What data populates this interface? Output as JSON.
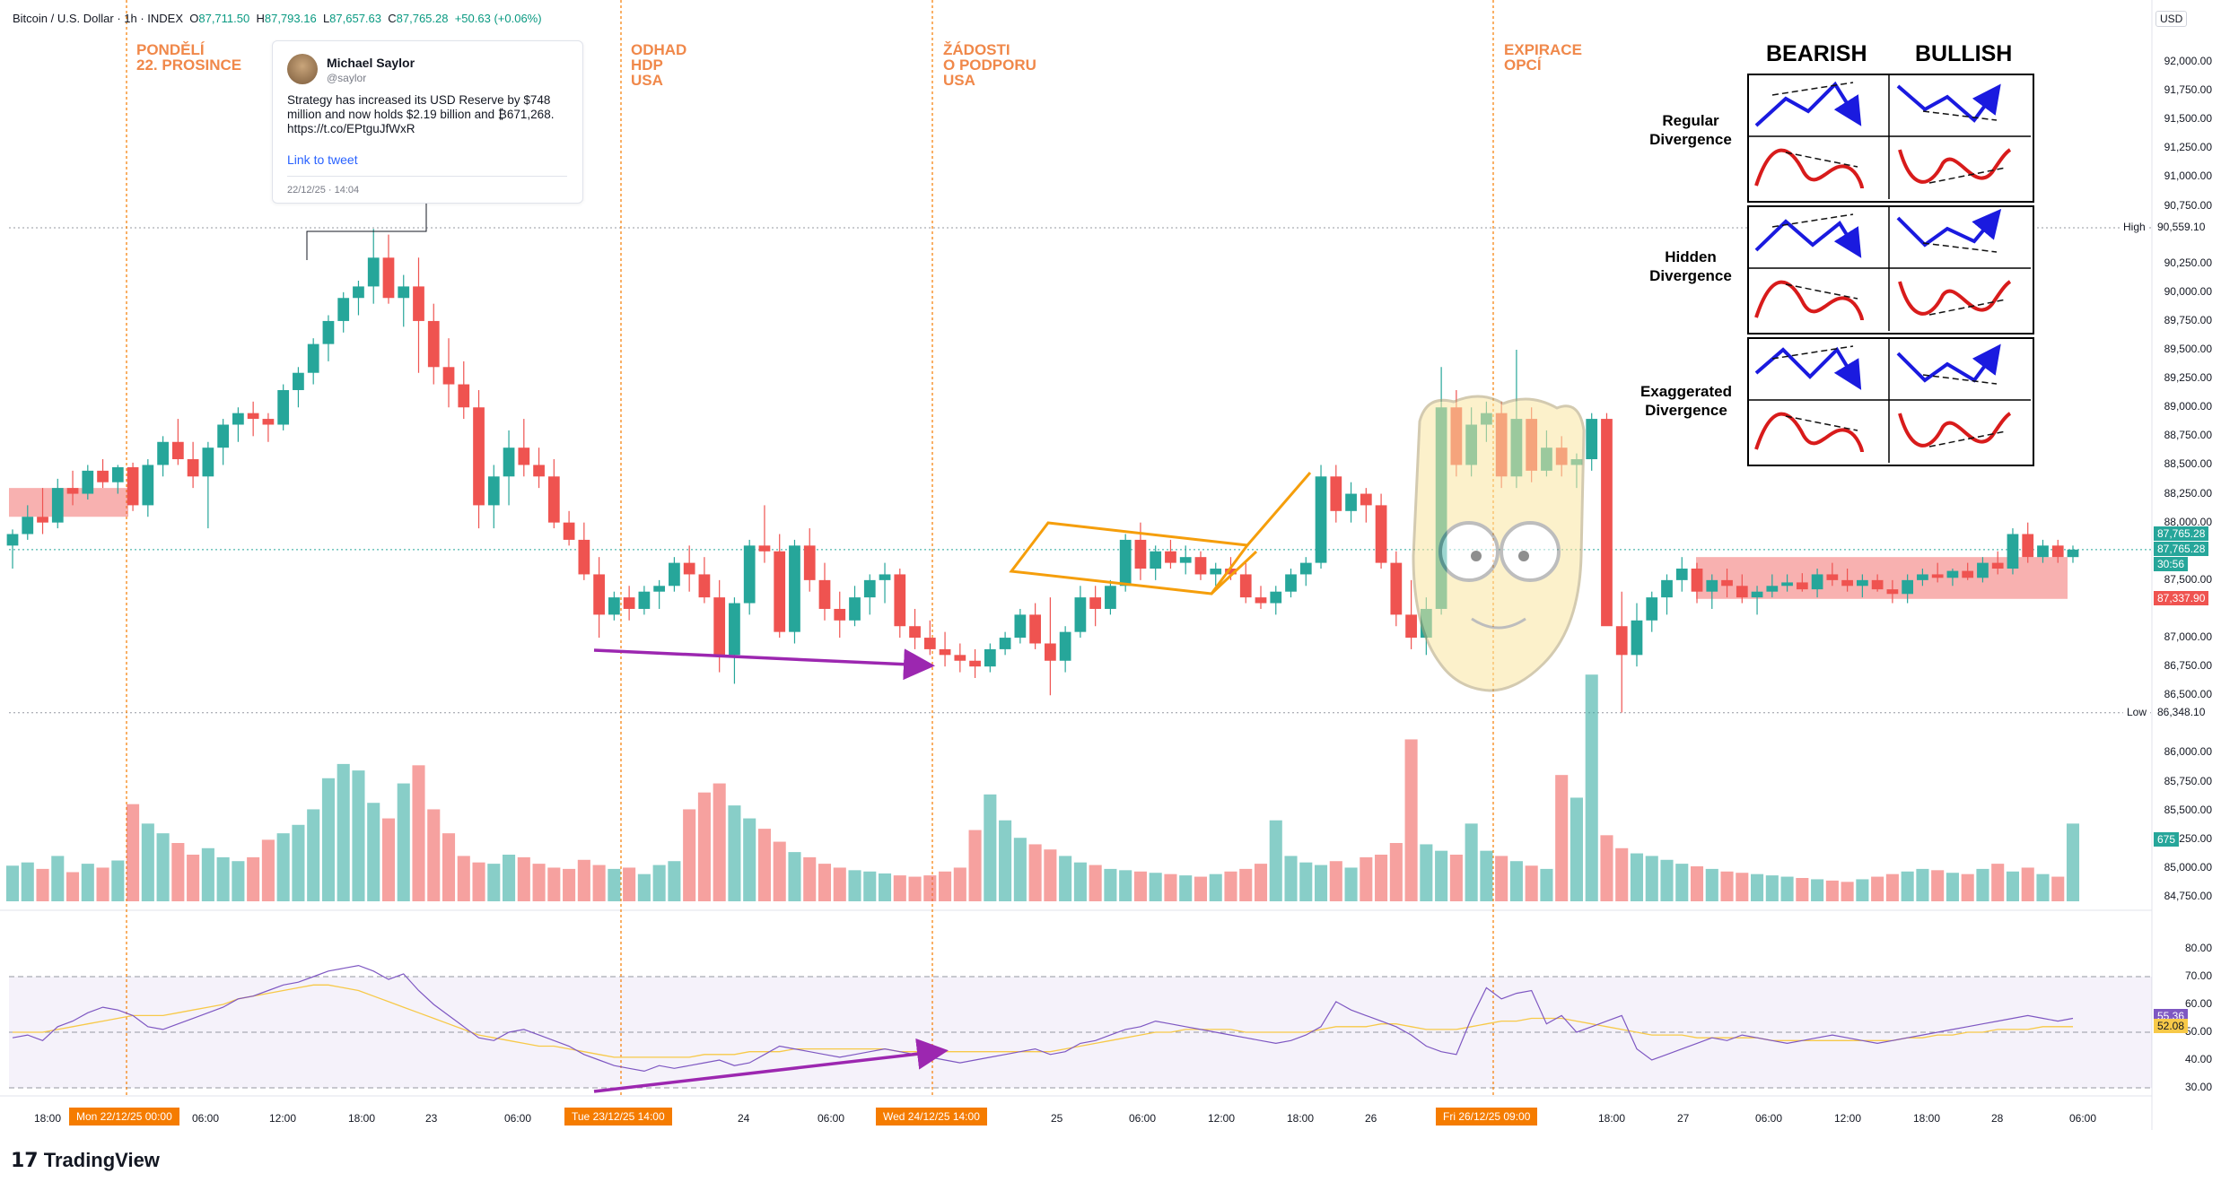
{
  "header": {
    "symbol": "Bitcoin / U.S. Dollar · 1h · INDEX",
    "open_label": "O",
    "open": "87,711.50",
    "high_label": "H",
    "high": "87,793.16",
    "low_label": "L",
    "low": "87,657.63",
    "close_label": "C",
    "close": "87,765.28",
    "change": "+50.63 (+0.06%)"
  },
  "currency": "USD",
  "brand": "TradingView",
  "tweet": {
    "name": "Michael Saylor",
    "handle": "@saylor",
    "text": "Strategy has increased its USD Reserve by $748 million and now holds $2.19 billion and ₿671,268. https://t.co/EPtguJfWxR",
    "link": "Link to tweet",
    "date": "22/12/25 · 14:04"
  },
  "events": [
    {
      "text": "PONDĚLÍ\n22. PROSINCE"
    },
    {
      "text": "ODHAD\nHDP\nUSA"
    },
    {
      "text": "ŽÁDOSTI\nO PODPORU\nUSA"
    },
    {
      "text": "EXPIRACE\nOPCÍ"
    }
  ],
  "divergence": {
    "bearish": "BEARISH",
    "bullish": "BULLISH",
    "regular": "Regular\nDivergence",
    "hidden": "Hidden\nDivergence",
    "exaggerated": "Exaggerated\nDivergence"
  },
  "price_axis": {
    "ticks": [
      "92,000.00",
      "91,750.00",
      "91,500.00",
      "91,250.00",
      "91,000.00",
      "90,750.00",
      "90,250.00",
      "90,000.00",
      "89,750.00",
      "89,500.00",
      "89,250.00",
      "89,000.00",
      "88,750.00",
      "88,500.00",
      "88,250.00",
      "88,000.00",
      "87,500.00",
      "87,000.00",
      "86,750.00",
      "86,500.00",
      "86,000.00",
      "85,750.00",
      "85,500.00",
      "85,250.00",
      "85,000.00",
      "84,750.00"
    ],
    "high_label": "High",
    "high_value": "90,559.10",
    "low_label": "Low",
    "low_value": "86,348.10",
    "last_price": "87,765.28",
    "last_price_2": "87,765.28",
    "countdown": "30:56",
    "red_tag": "87,337.90",
    "volume_tag": "675"
  },
  "rsi_axis": {
    "ticks": [
      "80.00",
      "70.00",
      "60.00",
      "50.00",
      "40.00",
      "30.00"
    ],
    "rsi_value": "55.36",
    "rsi_ma_value": "52.08"
  },
  "time_axis": {
    "ticks": [
      "18:00",
      "06:00",
      "12:00",
      "18:00",
      "23",
      "06:00",
      "24",
      "06:00",
      "25",
      "06:00",
      "12:00",
      "18:00",
      "26",
      "18:00",
      "27",
      "06:00",
      "12:00",
      "18:00",
      "28",
      "06:00"
    ],
    "highlighted": [
      "Mon 22/12/25  00:00",
      "Tue 23/12/25  14:00",
      "Wed 24/12/25  14:00",
      "Fri 26/12/25  09:00"
    ]
  },
  "colors": {
    "up": "#26a69a",
    "down": "#ef5350",
    "event_line": "#f57c00",
    "arrow": "#9c27b0",
    "channel": "#f59e0b",
    "rsi": "#7e57c2",
    "rsi_ma": "#f7c948"
  },
  "chart_data": {
    "type": "candlestick",
    "title": "Bitcoin / U.S. Dollar · 1h · INDEX",
    "interval": "1h",
    "ylim": [
      84600,
      92200
    ],
    "candles": [
      [
        87800,
        87940,
        87600,
        87900
      ],
      [
        87900,
        88150,
        87850,
        88050
      ],
      [
        88050,
        88300,
        87900,
        88000
      ],
      [
        88000,
        88380,
        87950,
        88300
      ],
      [
        88300,
        88450,
        88150,
        88250
      ],
      [
        88250,
        88500,
        88200,
        88450
      ],
      [
        88450,
        88550,
        88300,
        88350
      ],
      [
        88350,
        88500,
        88250,
        88480
      ],
      [
        88480,
        88520,
        88100,
        88150
      ],
      [
        88150,
        88550,
        88050,
        88500
      ],
      [
        88500,
        88750,
        88400,
        88700
      ],
      [
        88700,
        88900,
        88500,
        88550
      ],
      [
        88550,
        88700,
        88300,
        88400
      ],
      [
        88400,
        88700,
        87950,
        88650
      ],
      [
        88650,
        88900,
        88500,
        88850
      ],
      [
        88850,
        89000,
        88700,
        88950
      ],
      [
        88950,
        89050,
        88750,
        88900
      ],
      [
        88900,
        88950,
        88700,
        88850
      ],
      [
        88850,
        89200,
        88800,
        89150
      ],
      [
        89150,
        89350,
        89000,
        89300
      ],
      [
        89300,
        89600,
        89200,
        89550
      ],
      [
        89550,
        89800,
        89400,
        89750
      ],
      [
        89750,
        90000,
        89650,
        89950
      ],
      [
        89950,
        90100,
        89800,
        90050
      ],
      [
        90050,
        90550,
        89900,
        90300
      ],
      [
        90300,
        90500,
        89900,
        89950
      ],
      [
        89950,
        90150,
        89700,
        90050
      ],
      [
        90050,
        90300,
        89300,
        89750
      ],
      [
        89750,
        89900,
        89200,
        89350
      ],
      [
        89350,
        89600,
        89000,
        89200
      ],
      [
        89200,
        89400,
        88900,
        89000
      ],
      [
        89000,
        89150,
        87950,
        88150
      ],
      [
        88150,
        88500,
        87950,
        88400
      ],
      [
        88400,
        88800,
        88150,
        88650
      ],
      [
        88650,
        88900,
        88400,
        88500
      ],
      [
        88500,
        88650,
        88300,
        88400
      ],
      [
        88400,
        88550,
        87950,
        88000
      ],
      [
        88000,
        88100,
        87800,
        87850
      ],
      [
        87850,
        88000,
        87500,
        87550
      ],
      [
        87550,
        87700,
        87000,
        87200
      ],
      [
        87200,
        87400,
        87150,
        87350
      ],
      [
        87350,
        87450,
        87150,
        87250
      ],
      [
        87250,
        87450,
        87200,
        87400
      ],
      [
        87400,
        87500,
        87250,
        87450
      ],
      [
        87450,
        87700,
        87400,
        87650
      ],
      [
        87650,
        87800,
        87400,
        87550
      ],
      [
        87550,
        87700,
        87300,
        87350
      ],
      [
        87350,
        87500,
        86700,
        86850
      ],
      [
        86850,
        87350,
        86600,
        87300
      ],
      [
        87300,
        87850,
        87200,
        87800
      ],
      [
        87800,
        88150,
        87650,
        87750
      ],
      [
        87750,
        87900,
        87000,
        87050
      ],
      [
        87050,
        87850,
        86950,
        87800
      ],
      [
        87800,
        87950,
        87400,
        87500
      ],
      [
        87500,
        87650,
        87150,
        87250
      ],
      [
        87250,
        87400,
        87000,
        87150
      ],
      [
        87150,
        87450,
        87100,
        87350
      ],
      [
        87350,
        87550,
        87200,
        87500
      ],
      [
        87500,
        87650,
        87300,
        87550
      ],
      [
        87550,
        87600,
        87000,
        87100
      ],
      [
        87100,
        87250,
        86900,
        87000
      ],
      [
        87000,
        87150,
        86850,
        86900
      ],
      [
        86900,
        87050,
        86750,
        86850
      ],
      [
        86850,
        86950,
        86700,
        86800
      ],
      [
        86800,
        86900,
        86650,
        86750
      ],
      [
        86750,
        86950,
        86700,
        86900
      ],
      [
        86900,
        87050,
        86850,
        87000
      ],
      [
        87000,
        87250,
        86950,
        87200
      ],
      [
        87200,
        87300,
        86900,
        86950
      ],
      [
        86950,
        87350,
        86500,
        86800
      ],
      [
        86800,
        87100,
        86700,
        87050
      ],
      [
        87050,
        87450,
        87000,
        87350
      ],
      [
        87350,
        87450,
        87100,
        87250
      ],
      [
        87250,
        87500,
        87200,
        87450
      ],
      [
        87450,
        87900,
        87400,
        87850
      ],
      [
        87850,
        88000,
        87500,
        87600
      ],
      [
        87600,
        87800,
        87500,
        87750
      ],
      [
        87750,
        87850,
        87600,
        87650
      ],
      [
        87650,
        87800,
        87550,
        87700
      ],
      [
        87700,
        87750,
        87500,
        87550
      ],
      [
        87550,
        87650,
        87450,
        87600
      ],
      [
        87600,
        87700,
        87500,
        87550
      ],
      [
        87550,
        87650,
        87300,
        87350
      ],
      [
        87350,
        87450,
        87250,
        87300
      ],
      [
        87300,
        87450,
        87200,
        87400
      ],
      [
        87400,
        87600,
        87350,
        87550
      ],
      [
        87550,
        87700,
        87450,
        87650
      ],
      [
        87650,
        88500,
        87600,
        88400
      ],
      [
        88400,
        88500,
        88000,
        88100
      ],
      [
        88100,
        88350,
        88000,
        88250
      ],
      [
        88250,
        88300,
        88000,
        88150
      ],
      [
        88150,
        88250,
        87600,
        87650
      ],
      [
        87650,
        87750,
        87100,
        87200
      ],
      [
        87200,
        87500,
        86900,
        87000
      ],
      [
        87000,
        87350,
        86850,
        87250
      ],
      [
        87250,
        89350,
        87200,
        89000
      ],
      [
        89000,
        89150,
        88400,
        88500
      ],
      [
        88500,
        89000,
        88400,
        88850
      ],
      [
        88850,
        89050,
        88700,
        88950
      ],
      [
        88950,
        89050,
        88300,
        88400
      ],
      [
        88400,
        89500,
        88300,
        88900
      ],
      [
        88900,
        89000,
        88350,
        88450
      ],
      [
        88450,
        88800,
        88400,
        88650
      ],
      [
        88650,
        88750,
        88400,
        88500
      ],
      [
        88500,
        88600,
        88300,
        88550
      ],
      [
        88550,
        88950,
        88450,
        88900
      ],
      [
        88900,
        88950,
        87150,
        87100
      ],
      [
        87100,
        87400,
        86350,
        86850
      ],
      [
        86850,
        87300,
        86750,
        87150
      ],
      [
        87150,
        87400,
        87050,
        87350
      ],
      [
        87350,
        87550,
        87200,
        87500
      ],
      [
        87500,
        87700,
        87400,
        87600
      ],
      [
        87600,
        87650,
        87300,
        87400
      ],
      [
        87400,
        87550,
        87250,
        87500
      ],
      [
        87500,
        87600,
        87350,
        87450
      ],
      [
        87450,
        87550,
        87300,
        87350
      ],
      [
        87350,
        87450,
        87200,
        87400
      ],
      [
        87400,
        87550,
        87350,
        87450
      ],
      [
        87450,
        87550,
        87400,
        87480
      ],
      [
        87480,
        87560,
        87400,
        87420
      ],
      [
        87420,
        87600,
        87350,
        87550
      ],
      [
        87550,
        87650,
        87450,
        87500
      ],
      [
        87500,
        87600,
        87400,
        87450
      ],
      [
        87450,
        87550,
        87350,
        87500
      ],
      [
        87500,
        87550,
        87400,
        87420
      ],
      [
        87420,
        87500,
        87300,
        87380
      ],
      [
        87380,
        87550,
        87300,
        87500
      ],
      [
        87500,
        87600,
        87450,
        87550
      ],
      [
        87550,
        87650,
        87480,
        87520
      ],
      [
        87520,
        87600,
        87450,
        87580
      ],
      [
        87580,
        87650,
        87500,
        87520
      ],
      [
        87520,
        87700,
        87480,
        87650
      ],
      [
        87650,
        87750,
        87550,
        87600
      ],
      [
        87600,
        87950,
        87550,
        87900
      ],
      [
        87900,
        88000,
        87650,
        87700
      ],
      [
        87700,
        87850,
        87650,
        87800
      ],
      [
        87800,
        87850,
        87650,
        87700
      ],
      [
        87700,
        87800,
        87650,
        87765
      ]
    ],
    "volume": [
      55,
      60,
      50,
      70,
      45,
      58,
      52,
      63,
      150,
      120,
      105,
      90,
      72,
      82,
      68,
      62,
      68,
      95,
      105,
      118,
      142,
      190,
      212,
      202,
      152,
      128,
      182,
      210,
      142,
      105,
      70,
      60,
      58,
      72,
      68,
      58,
      52,
      50,
      64,
      56,
      50,
      52,
      42,
      56,
      62,
      142,
      168,
      182,
      148,
      128,
      112,
      92,
      76,
      68,
      58,
      52,
      48,
      46,
      43,
      40,
      38,
      40,
      46,
      52,
      110,
      165,
      125,
      98,
      88,
      80,
      70,
      60,
      56,
      50,
      48,
      46,
      44,
      42,
      40,
      38,
      42,
      46,
      50,
      58,
      125,
      70,
      60,
      56,
      62,
      52,
      68,
      72,
      90,
      250,
      88,
      78,
      72,
      120,
      78,
      70,
      62,
      55,
      50,
      195,
      160,
      350,
      102,
      82,
      74,
      70,
      64,
      58,
      54,
      50,
      46,
      44,
      42,
      40,
      38,
      36,
      34,
      32,
      30,
      34,
      38,
      42,
      46,
      50,
      48,
      44,
      42,
      50,
      58,
      46,
      52,
      42,
      38,
      120
    ],
    "rsi": [
      48,
      49,
      47,
      52,
      54,
      57,
      59,
      58,
      56,
      52,
      51,
      53,
      55,
      57,
      59,
      62,
      63,
      65,
      67,
      68,
      70,
      72,
      73,
      74,
      72,
      69,
      71,
      65,
      60,
      56,
      52,
      48,
      47,
      50,
      51,
      49,
      47,
      45,
      42,
      40,
      38,
      37,
      36,
      38,
      37,
      38,
      39,
      40,
      38,
      39,
      42,
      45,
      44,
      43,
      42,
      41,
      42,
      43,
      44,
      43,
      42,
      41,
      40,
      39,
      40,
      41,
      42,
      43,
      44,
      42,
      43,
      46,
      47,
      49,
      51,
      52,
      54,
      53,
      52,
      51,
      50,
      49,
      48,
      47,
      46,
      47,
      49,
      52,
      61,
      58,
      56,
      54,
      52,
      49,
      45,
      43,
      42,
      55,
      66,
      62,
      64,
      65,
      53,
      56,
      50,
      52,
      54,
      56,
      44,
      40,
      42,
      44,
      46,
      48,
      47,
      49,
      48,
      47,
      46,
      47,
      48,
      49,
      48,
      47,
      46,
      47,
      48,
      49,
      50,
      51,
      52,
      53,
      54,
      55,
      56,
      55,
      54,
      55
    ],
    "rsi_ma": [
      50,
      50,
      50,
      51,
      52,
      53,
      54,
      55,
      56,
      56,
      56,
      57,
      58,
      59,
      60,
      62,
      63,
      64,
      65,
      66,
      67,
      67,
      66,
      65,
      63,
      61,
      59,
      57,
      55,
      53,
      51,
      49,
      48,
      47,
      46,
      45,
      45,
      44,
      43,
      42,
      41,
      41,
      41,
      41,
      41,
      41,
      42,
      42,
      42,
      43,
      43,
      43,
      44,
      44,
      44,
      44,
      44,
      44,
      44,
      43,
      43,
      43,
      43,
      43,
      43,
      43,
      43,
      43,
      43,
      43,
      44,
      45,
      46,
      47,
      48,
      49,
      50,
      50,
      51,
      51,
      51,
      51,
      50,
      50,
      50,
      50,
      50,
      51,
      52,
      52,
      52,
      53,
      53,
      52,
      51,
      51,
      51,
      52,
      53,
      54,
      54,
      55,
      55,
      55,
      54,
      53,
      52,
      51,
      50,
      49,
      49,
      49,
      48,
      48,
      48,
      48,
      48,
      47,
      47,
      47,
      47,
      47,
      47,
      47,
      47,
      47,
      48,
      48,
      49,
      49,
      50,
      50,
      51,
      51,
      51,
      52,
      52,
      52
    ],
    "rsi_ylim": [
      26,
      82
    ],
    "y_ticks": [
      92000,
      91750,
      91500,
      91250,
      91000,
      90750,
      90250,
      90000,
      89750,
      89500,
      89250,
      89000,
      88750,
      88500,
      88250,
      88000,
      87500,
      87000,
      86750,
      86500,
      86000,
      85750,
      85500,
      85250,
      85000,
      84750
    ],
    "rsi_ticks": [
      80,
      70,
      60,
      50,
      40,
      30
    ],
    "grid": false,
    "legend": "none"
  }
}
